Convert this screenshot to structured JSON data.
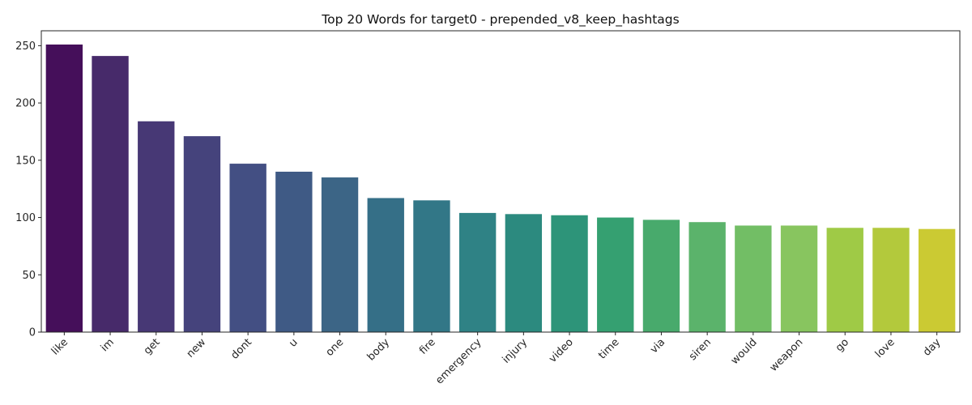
{
  "chart_data": {
    "type": "bar",
    "title": "Top 20 Words for target0 - prepended_v8_keep_hashtags",
    "xlabel": "",
    "ylabel": "",
    "categories": [
      "like",
      "im",
      "get",
      "new",
      "dont",
      "u",
      "one",
      "body",
      "fire",
      "emergency",
      "injury",
      "video",
      "time",
      "via",
      "siren",
      "would",
      "weapon",
      "go",
      "love",
      "day"
    ],
    "values": [
      251,
      241,
      184,
      171,
      147,
      140,
      135,
      117,
      115,
      104,
      103,
      102,
      100,
      98,
      96,
      93,
      93,
      91,
      91,
      90
    ],
    "ylim": [
      0,
      263
    ],
    "yticks": [
      0,
      50,
      100,
      150,
      200,
      250
    ],
    "grid": false,
    "legend": "none",
    "colors": [
      "#450f5a",
      "#472a6a",
      "#473875",
      "#45437c",
      "#434f83",
      "#3f5a85",
      "#3c6586",
      "#356f87",
      "#327787",
      "#2f8285",
      "#2c8a7f",
      "#2d9479",
      "#35a071",
      "#48aa6c",
      "#5bb36b",
      "#72be65",
      "#88c55f",
      "#9fca46",
      "#b3c93c",
      "#cbca33"
    ]
  }
}
